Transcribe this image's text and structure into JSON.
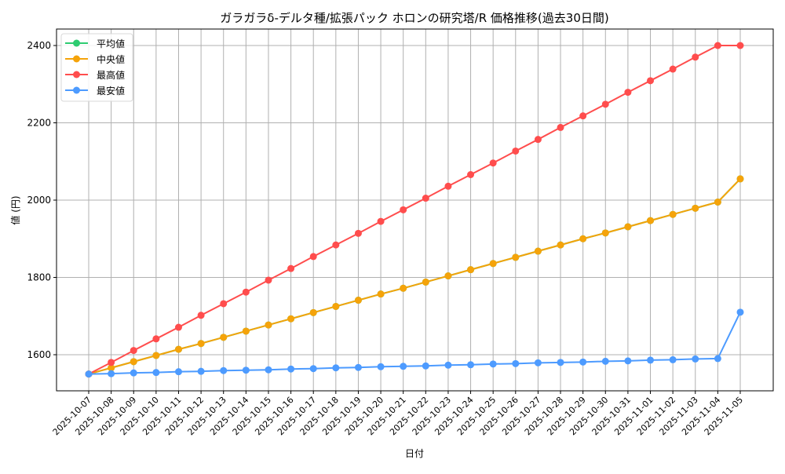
{
  "chart_data": {
    "type": "line",
    "title": "ガラガラδ-デルタ種/拡張パック ホロンの研究塔/R 価格推移(過去30日間)",
    "xlabel": "日付",
    "ylabel": "値 (円)",
    "ylim": [
      1510,
      2440
    ],
    "yticks": [
      1600,
      1800,
      2000,
      2200,
      2400
    ],
    "grid": true,
    "legend_position": "upper left",
    "categories": [
      "2025-10-07",
      "2025-10-08",
      "2025-10-09",
      "2025-10-10",
      "2025-10-11",
      "2025-10-12",
      "2025-10-13",
      "2025-10-14",
      "2025-10-15",
      "2025-10-16",
      "2025-10-17",
      "2025-10-18",
      "2025-10-19",
      "2025-10-20",
      "2025-10-21",
      "2025-10-22",
      "2025-10-23",
      "2025-10-24",
      "2025-10-25",
      "2025-10-26",
      "2025-10-27",
      "2025-10-28",
      "2025-10-29",
      "2025-10-30",
      "2025-10-31",
      "2025-11-01",
      "2025-11-02",
      "2025-11-03",
      "2025-11-04",
      "2025-11-05"
    ],
    "series": [
      {
        "name": "平均値",
        "color": "#2ecc71",
        "values": [
          1550,
          1566,
          1582,
          1598,
          1614,
          1629,
          1645,
          1661,
          1677,
          1693,
          1709,
          1725,
          1741,
          1757,
          1772,
          1788,
          1804,
          1820,
          1836,
          1852,
          1868,
          1884,
          1900,
          1915,
          1931,
          1947,
          1963,
          1979,
          1995,
          2055
        ]
      },
      {
        "name": "中央値",
        "color": "#f5a30a",
        "values": [
          1550,
          1566,
          1582,
          1598,
          1614,
          1629,
          1645,
          1661,
          1677,
          1693,
          1709,
          1725,
          1741,
          1757,
          1772,
          1788,
          1804,
          1820,
          1836,
          1852,
          1868,
          1884,
          1900,
          1915,
          1931,
          1947,
          1963,
          1979,
          1995,
          2055
        ]
      },
      {
        "name": "最高値",
        "color": "#ff4d4d",
        "values": [
          1550,
          1580,
          1611,
          1641,
          1671,
          1702,
          1732,
          1762,
          1793,
          1823,
          1854,
          1884,
          1914,
          1945,
          1975,
          2005,
          2036,
          2066,
          2096,
          2127,
          2157,
          2188,
          2218,
          2248,
          2279,
          2309,
          2339,
          2370,
          2400,
          2400
        ]
      },
      {
        "name": "最安値",
        "color": "#4d9bff",
        "values": [
          1550,
          1551,
          1553,
          1554,
          1556,
          1557,
          1559,
          1560,
          1561,
          1563,
          1564,
          1566,
          1567,
          1569,
          1570,
          1571,
          1573,
          1574,
          1576,
          1577,
          1579,
          1580,
          1581,
          1583,
          1584,
          1586,
          1587,
          1589,
          1590,
          1710
        ]
      }
    ]
  }
}
